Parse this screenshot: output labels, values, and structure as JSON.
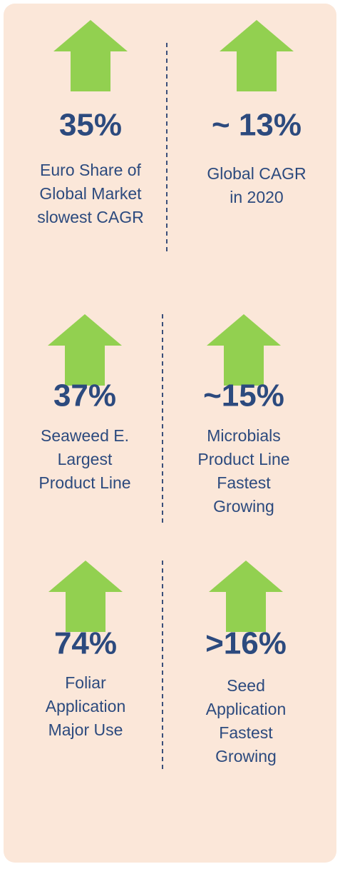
{
  "cells": [
    {
      "value": "35%",
      "lines": [
        "Euro Share of",
        "Global Market",
        "slowest CAGR"
      ]
    },
    {
      "value": "~ 13%",
      "lines": [
        "Global CAGR",
        "in 2020"
      ]
    },
    {
      "value": "37%",
      "lines": [
        "Seaweed E.",
        "Largest",
        "Product Line"
      ]
    },
    {
      "value": "~15%",
      "lines": [
        "Microbials",
        "Product Line",
        "Fastest",
        "Growing"
      ]
    },
    {
      "value": "74%",
      "lines": [
        "Foliar",
        "Application",
        "Major Use"
      ]
    },
    {
      "value": ">16%",
      "lines": [
        "Seed",
        "Application",
        "Fastest",
        "Growing"
      ]
    }
  ]
}
